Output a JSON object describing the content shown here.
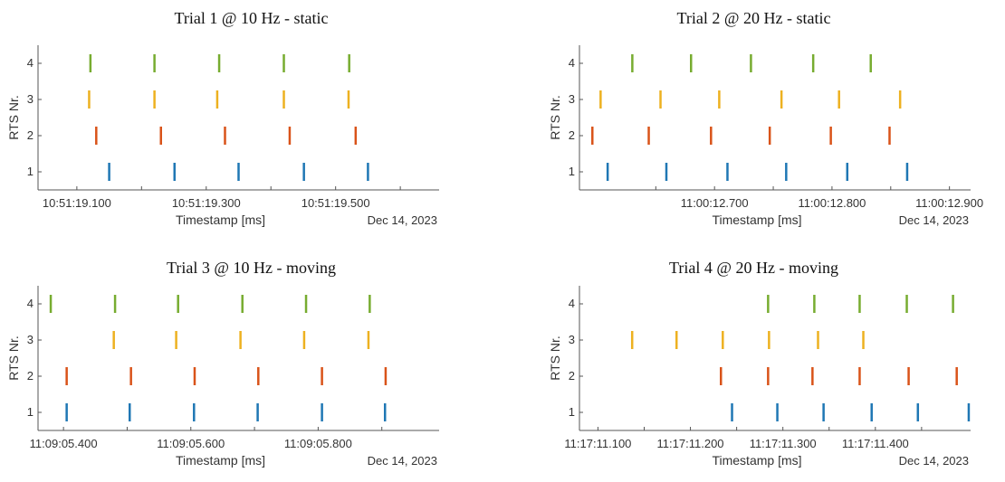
{
  "colors": {
    "1": "#1f77b4",
    "2": "#d95319",
    "3": "#edb120",
    "4": "#77ac30"
  },
  "chart_data": [
    {
      "type": "scatter",
      "marker": "vertical-line",
      "title": "Trial 1 @ 10 Hz - static",
      "xlabel": "Timestamp [ms]",
      "ylabel": "RTS Nr.",
      "date_label": "Dec 14, 2023",
      "xlim": [
        19.04,
        19.66
      ],
      "ylim": [
        0.5,
        4.5
      ],
      "yticks": [
        1,
        2,
        3,
        4
      ],
      "xticks": [
        {
          "value": 19.1,
          "label": "10:51:19.100"
        },
        {
          "value": 19.3,
          "label": "10:51:19.300"
        },
        {
          "value": 19.5,
          "label": "10:51:19.500"
        }
      ],
      "xticks_minor": [
        19.2,
        19.4,
        19.6
      ],
      "series": [
        {
          "rts": 4,
          "x": [
            19.121,
            19.22,
            19.32,
            19.42,
            19.521
          ]
        },
        {
          "rts": 3,
          "x": [
            19.119,
            19.22,
            19.317,
            19.42,
            19.52
          ]
        },
        {
          "rts": 2,
          "x": [
            19.13,
            19.23,
            19.329,
            19.429,
            19.531
          ]
        },
        {
          "rts": 1,
          "x": [
            19.15,
            19.251,
            19.35,
            19.451,
            19.55
          ]
        }
      ]
    },
    {
      "type": "scatter",
      "marker": "vertical-line",
      "title": "Trial 2 @ 20 Hz - static",
      "xlabel": "Timestamp [ms]",
      "ylabel": "RTS Nr.",
      "date_label": "Dec 14, 2023",
      "xlim": [
        12.585,
        12.918
      ],
      "ylim": [
        0.5,
        4.5
      ],
      "yticks": [
        1,
        2,
        3,
        4
      ],
      "xticks": [
        {
          "value": 12.7,
          "label": "11:00:12.700"
        },
        {
          "value": 12.8,
          "label": "11:00:12.800"
        },
        {
          "value": 12.9,
          "label": "11:00:12.900"
        }
      ],
      "xticks_minor": [
        12.65,
        12.75,
        12.85
      ],
      "series": [
        {
          "rts": 4,
          "x": [
            12.63,
            12.68,
            12.731,
            12.784,
            12.833
          ]
        },
        {
          "rts": 3,
          "x": [
            12.603,
            12.654,
            12.704,
            12.757,
            12.806,
            12.858
          ]
        },
        {
          "rts": 2,
          "x": [
            12.596,
            12.644,
            12.697,
            12.747,
            12.799,
            12.849
          ]
        },
        {
          "rts": 1,
          "x": [
            12.609,
            12.659,
            12.711,
            12.761,
            12.813,
            12.864
          ]
        }
      ]
    },
    {
      "type": "scatter",
      "marker": "vertical-line",
      "title": "Trial 3 @ 10 Hz - moving",
      "xlabel": "Timestamp [ms]",
      "ylabel": "RTS Nr.",
      "date_label": "Dec 14, 2023",
      "xlim": [
        5.36,
        5.99
      ],
      "ylim": [
        0.5,
        4.5
      ],
      "yticks": [
        1,
        2,
        3,
        4
      ],
      "xticks": [
        {
          "value": 5.4,
          "label": "11:09:05.400"
        },
        {
          "value": 5.6,
          "label": "11:09:05.600"
        },
        {
          "value": 5.8,
          "label": "11:09:05.800"
        }
      ],
      "xticks_minor": [
        5.5,
        5.7,
        5.9
      ],
      "series": [
        {
          "rts": 4,
          "x": [
            5.38,
            5.481,
            5.58,
            5.681,
            5.781,
            5.881
          ]
        },
        {
          "rts": 3,
          "x": [
            5.479,
            5.577,
            5.678,
            5.778,
            5.879
          ]
        },
        {
          "rts": 2,
          "x": [
            5.405,
            5.506,
            5.606,
            5.706,
            5.806,
            5.906
          ]
        },
        {
          "rts": 1,
          "x": [
            5.405,
            5.504,
            5.605,
            5.705,
            5.806,
            5.905
          ]
        }
      ]
    },
    {
      "type": "scatter",
      "marker": "vertical-line",
      "title": "Trial 4 @ 20 Hz - moving",
      "xlabel": "Timestamp [ms]",
      "ylabel": "RTS Nr.",
      "date_label": "Dec 14, 2023",
      "xlim": [
        11.08,
        11.503
      ],
      "ylim": [
        0.5,
        4.5
      ],
      "yticks": [
        1,
        2,
        3,
        4
      ],
      "xticks": [
        {
          "value": 11.1,
          "label": "11:17:11.100"
        },
        {
          "value": 11.2,
          "label": "11:17:11.200"
        },
        {
          "value": 11.3,
          "label": "11:17:11.300"
        },
        {
          "value": 11.4,
          "label": "11:17:11.400"
        }
      ],
      "xticks_minor": [
        11.15,
        11.25,
        11.35,
        11.45
      ],
      "series": [
        {
          "rts": 4,
          "x": [
            11.284,
            11.334,
            11.383,
            11.434,
            11.484
          ]
        },
        {
          "rts": 3,
          "x": [
            11.137,
            11.185,
            11.235,
            11.285,
            11.338,
            11.387
          ]
        },
        {
          "rts": 2,
          "x": [
            11.233,
            11.284,
            11.332,
            11.383,
            11.436,
            11.488
          ]
        },
        {
          "rts": 1,
          "x": [
            11.245,
            11.294,
            11.344,
            11.396,
            11.446,
            11.501
          ]
        }
      ]
    }
  ]
}
